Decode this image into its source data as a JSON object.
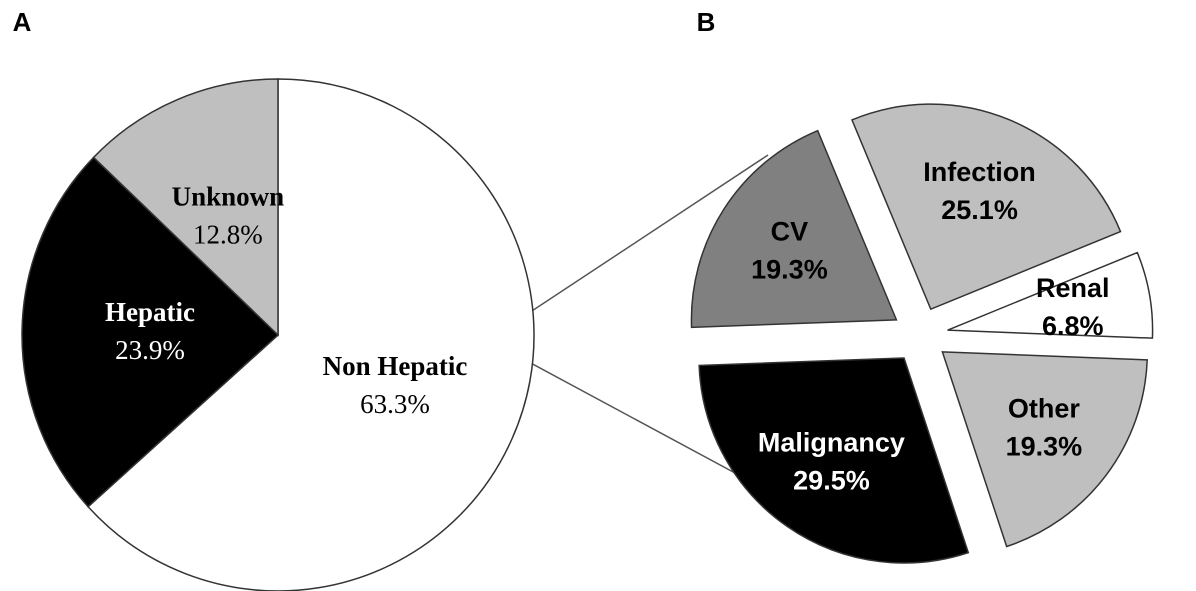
{
  "chart_data": [
    {
      "type": "pie",
      "title": "A",
      "categories": [
        "Non Hepatic",
        "Hepatic",
        "Unknown"
      ],
      "values": [
        63.3,
        23.9,
        12.8
      ],
      "value_labels": [
        "63.3%",
        "23.9%",
        "12.8%"
      ],
      "colors": [
        "#ffffff",
        "#000000",
        "#bfbfbf"
      ]
    },
    {
      "type": "pie",
      "title": "B",
      "categories": [
        "Infection",
        "Renal",
        "Other",
        "Malignancy",
        "CV"
      ],
      "values": [
        25.1,
        6.8,
        19.3,
        29.5,
        19.3
      ],
      "value_labels": [
        "25.1%",
        "6.8%",
        "19.3%",
        "29.5%",
        "19.3%"
      ],
      "colors": [
        "#bfbfbf",
        "#ffffff",
        "#bfbfbf",
        "#000000",
        "#808080"
      ]
    }
  ]
}
